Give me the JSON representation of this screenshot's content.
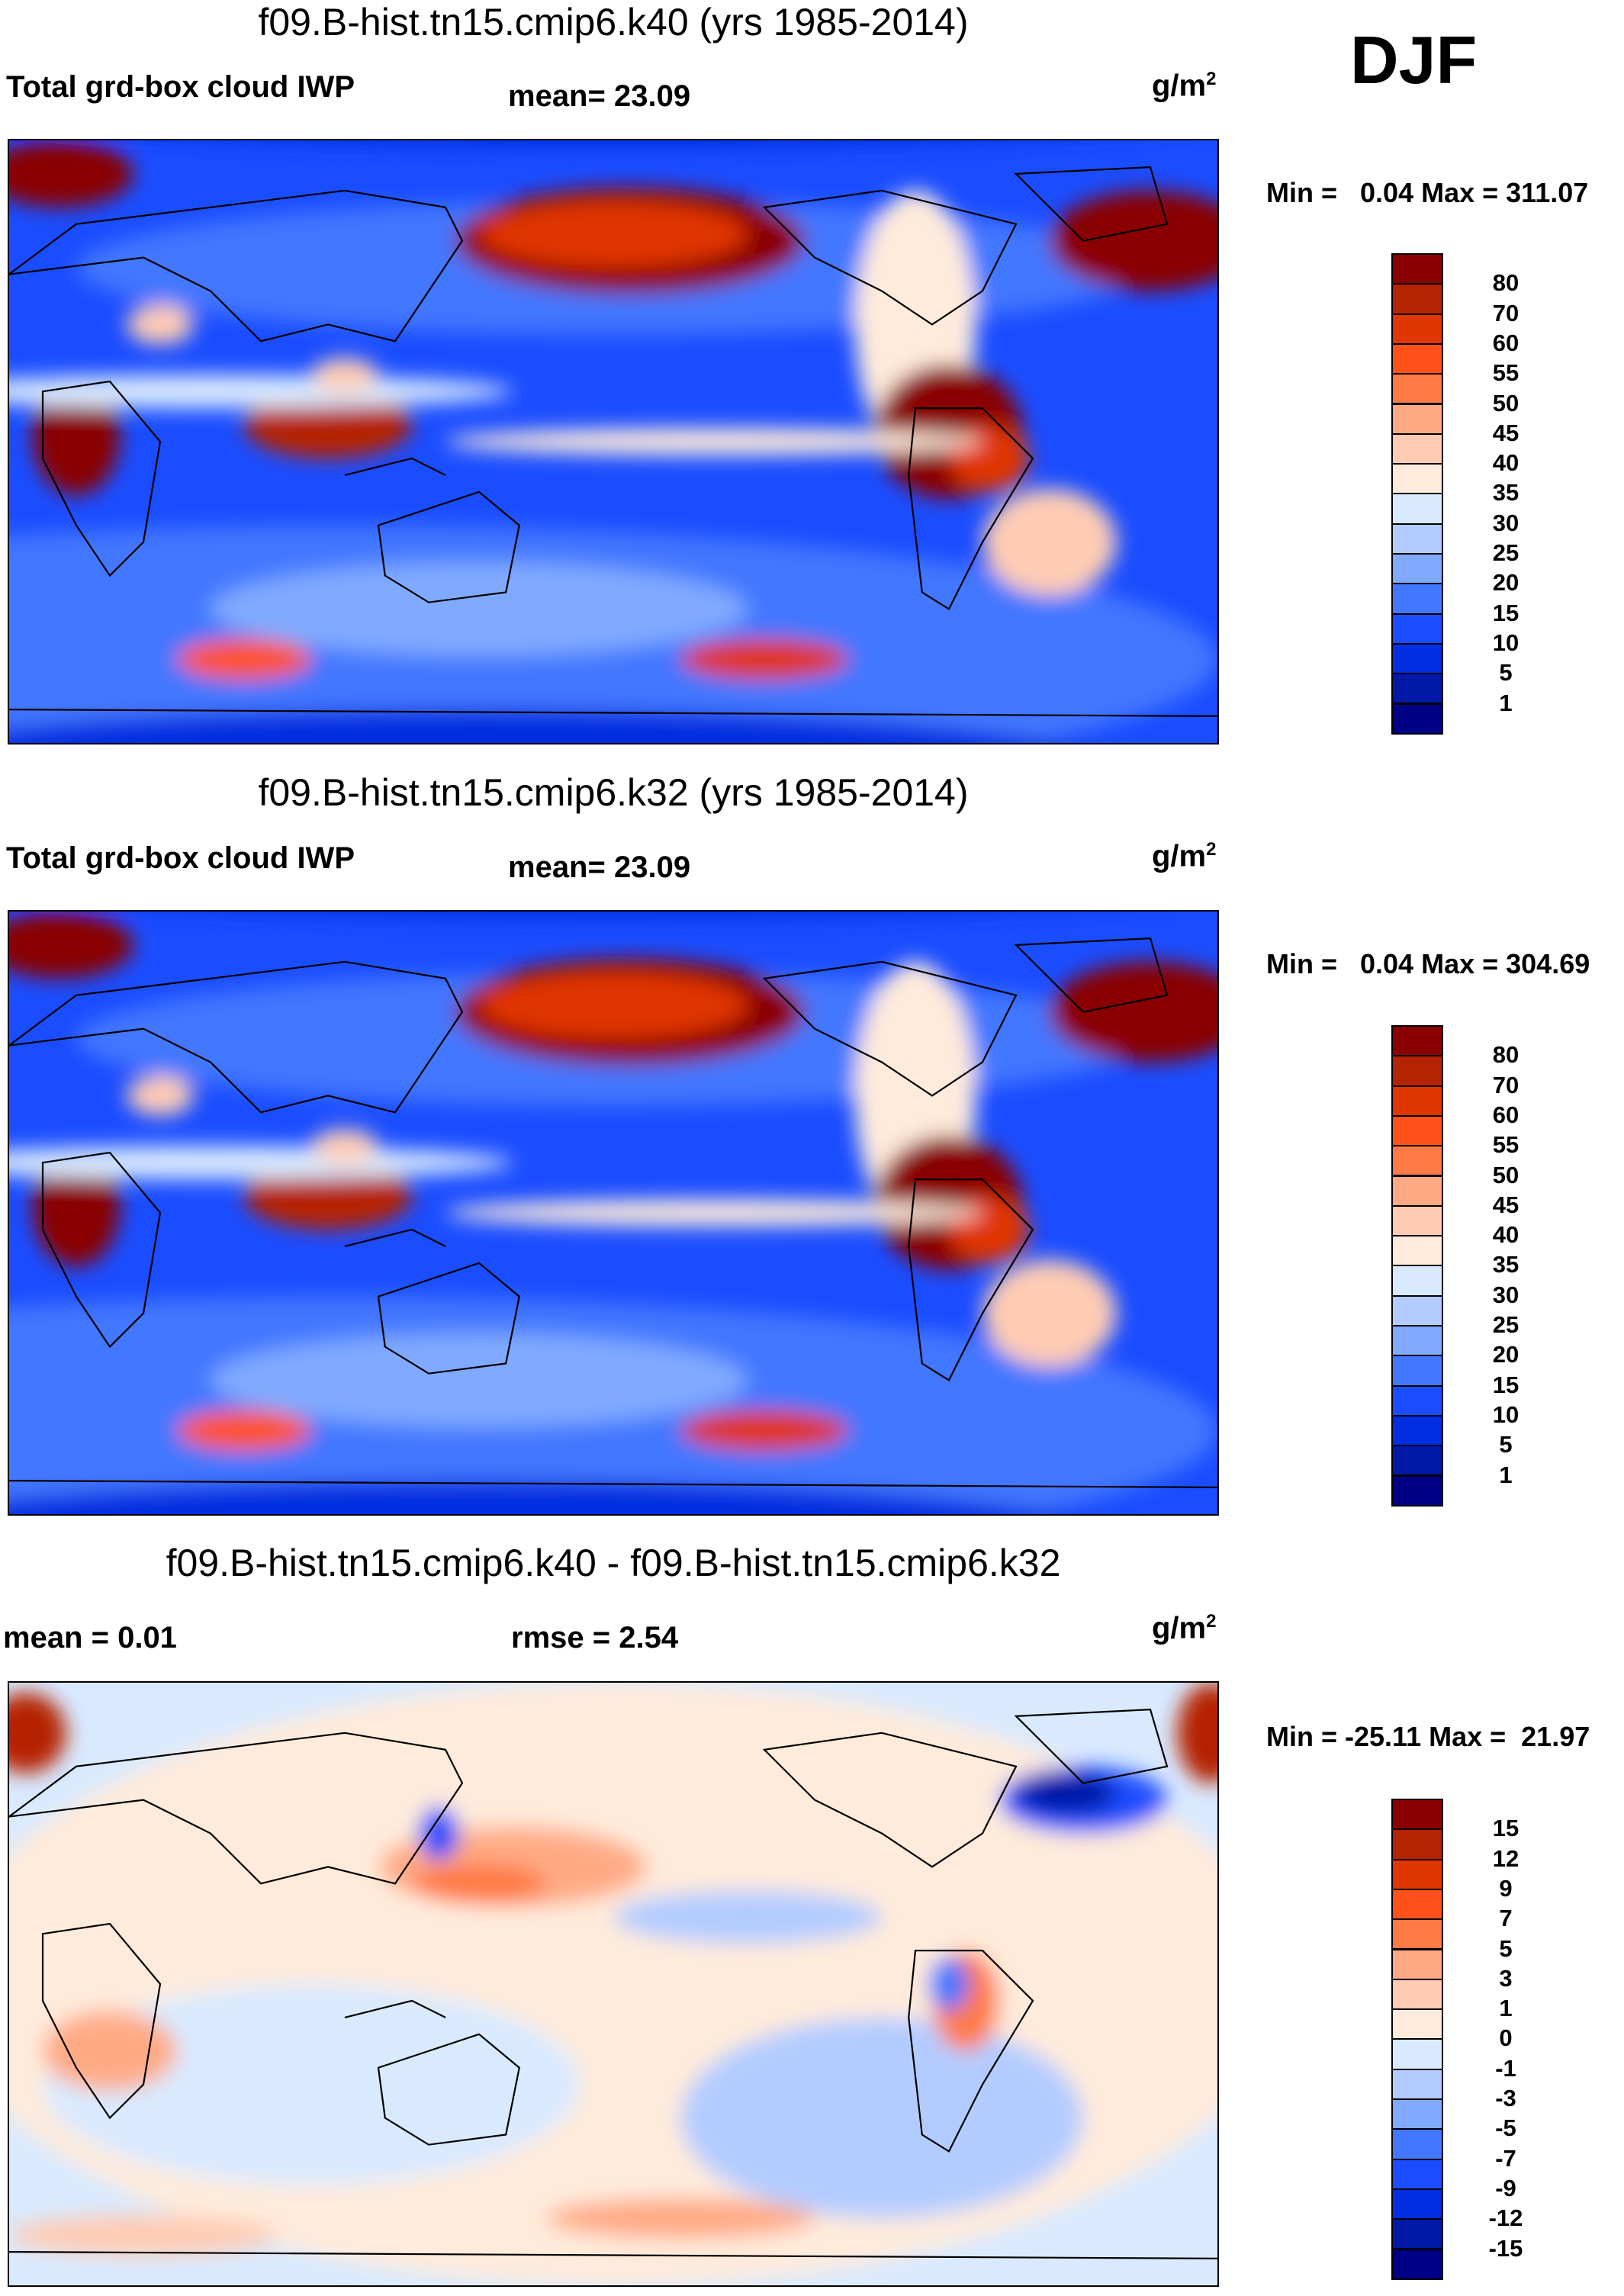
{
  "season": "DJF",
  "panels": [
    {
      "title": "f09.B-hist.tn15.cmip6.k40 (yrs 1985-2014)",
      "left_label": "Total grd-box cloud IWP",
      "center_label": "mean=  23.09",
      "units": "g/m",
      "units_sup": "2",
      "minmax": "Min =   0.04 Max = 311.07"
    },
    {
      "title": "f09.B-hist.tn15.cmip6.k32 (yrs 1985-2014)",
      "left_label": "Total grd-box cloud IWP",
      "center_label": "mean=  23.09",
      "units": "g/m",
      "units_sup": "2",
      "minmax": "Min =   0.04 Max = 304.69"
    },
    {
      "title": "f09.B-hist.tn15.cmip6.k40 - f09.B-hist.tn15.cmip6.k32",
      "left_label": "mean =   0.01",
      "center_label": "rmse =    2.54",
      "units": "g/m",
      "units_sup": "2",
      "minmax": "Min = -25.11 Max =  21.97"
    }
  ],
  "chart_data": [
    {
      "type": "heatmap",
      "title": "f09.B-hist.tn15.cmip6.k40 (yrs 1985-2014)",
      "variable": "Total grd-box cloud IWP",
      "mean": 23.09,
      "min": 0.04,
      "max": 311.07,
      "units": "g/m2",
      "levels": [
        "1",
        "5",
        "10",
        "15",
        "20",
        "25",
        "30",
        "35",
        "40",
        "45",
        "50",
        "55",
        "60",
        "70",
        "80"
      ]
    },
    {
      "type": "heatmap",
      "title": "f09.B-hist.tn15.cmip6.k32 (yrs 1985-2014)",
      "variable": "Total grd-box cloud IWP",
      "mean": 23.09,
      "min": 0.04,
      "max": 304.69,
      "units": "g/m2",
      "levels": [
        "1",
        "5",
        "10",
        "15",
        "20",
        "25",
        "30",
        "35",
        "40",
        "45",
        "50",
        "55",
        "60",
        "70",
        "80"
      ]
    },
    {
      "type": "heatmap",
      "title": "f09.B-hist.tn15.cmip6.k40 - f09.B-hist.tn15.cmip6.k32",
      "mean": 0.01,
      "rmse": 2.54,
      "min": -25.11,
      "max": 21.97,
      "units": "g/m2",
      "levels": [
        "-15",
        "-12",
        "-9",
        "-7",
        "-5",
        "-3",
        "-1",
        "0",
        "1",
        "3",
        "5",
        "7",
        "9",
        "12",
        "15"
      ]
    }
  ],
  "colors": [
    "#000087",
    "#0019a6",
    "#002ee0",
    "#1a4dff",
    "#4277ff",
    "#80aaff",
    "#b3ccff",
    "#d9eaff",
    "#ffebdb",
    "#ffccb3",
    "#ffaa85",
    "#ff7a45",
    "#ff521a",
    "#e03600",
    "#b52400",
    "#8a0000"
  ]
}
